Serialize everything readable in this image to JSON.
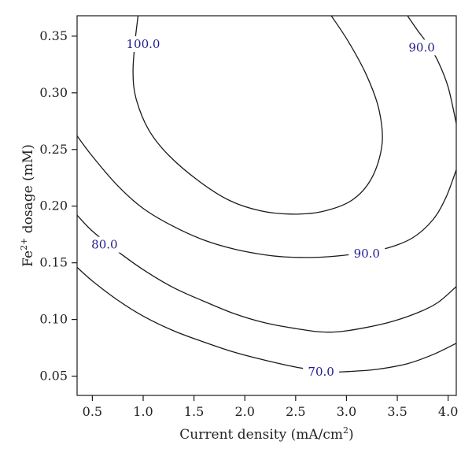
{
  "chart_data": {
    "type": "contour",
    "xlabel": "Current density (mA/cm",
    "xlabel_sup": "2",
    "xlabel_end": ")",
    "ylabel": "Fe",
    "ylabel_sup": "2+",
    "ylabel_end": " dosage (mM)",
    "xlim": [
      0.35,
      4.08
    ],
    "ylim": [
      0.033,
      0.368
    ],
    "x_ticks": [
      0.5,
      1.0,
      1.5,
      2.0,
      2.5,
      3.0,
      3.5,
      4.0
    ],
    "x_tick_labels": [
      "0.5",
      "1.0",
      "1.5",
      "2.0",
      "2.5",
      "3.0",
      "3.5",
      "4.0"
    ],
    "y_ticks": [
      0.05,
      0.1,
      0.15,
      0.2,
      0.25,
      0.3,
      0.35
    ],
    "y_tick_labels": [
      "0.05",
      "0.10",
      "0.15",
      "0.20",
      "0.25",
      "0.30",
      "0.35"
    ],
    "label_color": "#1f1a8c",
    "line_color": "#1a1a1a",
    "contours": [
      {
        "level_label": "100.0",
        "label_at": [
          1.0,
          0.343
        ],
        "points": [
          [
            0.95,
            0.368
          ],
          [
            0.92,
            0.345
          ],
          [
            0.9,
            0.318
          ],
          [
            0.93,
            0.295
          ],
          [
            1.05,
            0.268
          ],
          [
            1.25,
            0.245
          ],
          [
            1.55,
            0.222
          ],
          [
            1.85,
            0.205
          ],
          [
            2.15,
            0.196
          ],
          [
            2.45,
            0.193
          ],
          [
            2.75,
            0.195
          ],
          [
            3.05,
            0.205
          ],
          [
            3.25,
            0.225
          ],
          [
            3.35,
            0.255
          ],
          [
            3.32,
            0.285
          ],
          [
            3.2,
            0.315
          ],
          [
            3.02,
            0.345
          ],
          [
            2.85,
            0.368
          ]
        ]
      },
      {
        "level_label": "90.0",
        "label_at": [
          3.2,
          0.158
        ],
        "points": [
          [
            0.35,
            0.262
          ],
          [
            0.5,
            0.244
          ],
          [
            0.75,
            0.218
          ],
          [
            1.0,
            0.198
          ],
          [
            1.3,
            0.182
          ],
          [
            1.6,
            0.17
          ],
          [
            1.9,
            0.162
          ],
          [
            2.2,
            0.157
          ],
          [
            2.45,
            0.155
          ],
          [
            2.75,
            0.155
          ],
          [
            3.1,
            0.158
          ],
          [
            3.4,
            0.163
          ],
          [
            3.65,
            0.172
          ],
          [
            3.85,
            0.188
          ],
          [
            3.98,
            0.208
          ],
          [
            4.08,
            0.232
          ]
        ]
      },
      {
        "level_label": "90.0",
        "label_at": [
          3.74,
          0.34
        ],
        "points": [
          [
            3.6,
            0.368
          ],
          [
            3.7,
            0.355
          ],
          [
            3.8,
            0.343
          ],
          [
            3.9,
            0.328
          ],
          [
            4.0,
            0.305
          ],
          [
            4.08,
            0.273
          ]
        ]
      },
      {
        "level_label": "80.0",
        "label_at": [
          0.62,
          0.166
        ],
        "points": [
          [
            0.35,
            0.192
          ],
          [
            0.5,
            0.178
          ],
          [
            0.75,
            0.16
          ],
          [
            1.0,
            0.144
          ],
          [
            1.3,
            0.128
          ],
          [
            1.6,
            0.116
          ],
          [
            1.9,
            0.105
          ],
          [
            2.2,
            0.097
          ],
          [
            2.5,
            0.092
          ],
          [
            2.75,
            0.089
          ],
          [
            3.0,
            0.09
          ],
          [
            3.4,
            0.097
          ],
          [
            3.7,
            0.106
          ],
          [
            3.9,
            0.115
          ],
          [
            4.08,
            0.129
          ]
        ]
      },
      {
        "level_label": "70.0",
        "label_at": [
          2.75,
          0.054
        ],
        "points": [
          [
            0.35,
            0.146
          ],
          [
            0.5,
            0.134
          ],
          [
            0.75,
            0.117
          ],
          [
            1.0,
            0.103
          ],
          [
            1.3,
            0.09
          ],
          [
            1.6,
            0.08
          ],
          [
            1.9,
            0.071
          ],
          [
            2.2,
            0.064
          ],
          [
            2.5,
            0.058
          ],
          [
            2.8,
            0.054
          ],
          [
            3.0,
            0.054
          ],
          [
            3.3,
            0.056
          ],
          [
            3.6,
            0.061
          ],
          [
            3.85,
            0.069
          ],
          [
            4.08,
            0.079
          ]
        ]
      }
    ]
  }
}
